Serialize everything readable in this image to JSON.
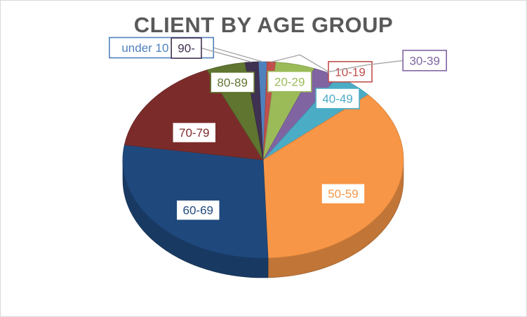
{
  "chart_data": {
    "type": "pie",
    "title": "CLIENT BY AGE GROUP",
    "categories": [
      "under 10 years",
      "10-19",
      "20-29",
      "30-39",
      "40-49",
      "50-59",
      "60-69",
      "70-79",
      "80-89",
      "90-"
    ],
    "values": [
      1.0,
      1.0,
      4.5,
      3.0,
      4.5,
      36.0,
      28.0,
      16.0,
      4.5,
      1.5
    ],
    "colors": [
      "#4F81BD",
      "#C0504D",
      "#9BBB59",
      "#8064A2",
      "#4BACC6",
      "#F79646",
      "#1F497D",
      "#7B2C2A",
      "#5F7530",
      "#3F3151"
    ],
    "labels": [
      {
        "text": "under 10 years",
        "color": "#4F81BD"
      },
      {
        "text": "10-19",
        "color": "#C0504D"
      },
      {
        "text": "20-29",
        "color": "#9BBB59"
      },
      {
        "text": "30-39",
        "color": "#8064A2"
      },
      {
        "text": "40-49",
        "color": "#4BACC6"
      },
      {
        "text": "50-59",
        "color": "#F79646"
      },
      {
        "text": "60-69",
        "color": "#1F497D"
      },
      {
        "text": "70-79",
        "color": "#7B2C2A"
      },
      {
        "text": "80-89",
        "color": "#5F7530"
      },
      {
        "text": "90-",
        "color": "#3F3151"
      }
    ],
    "style": "3d-pie",
    "legend": "none"
  }
}
